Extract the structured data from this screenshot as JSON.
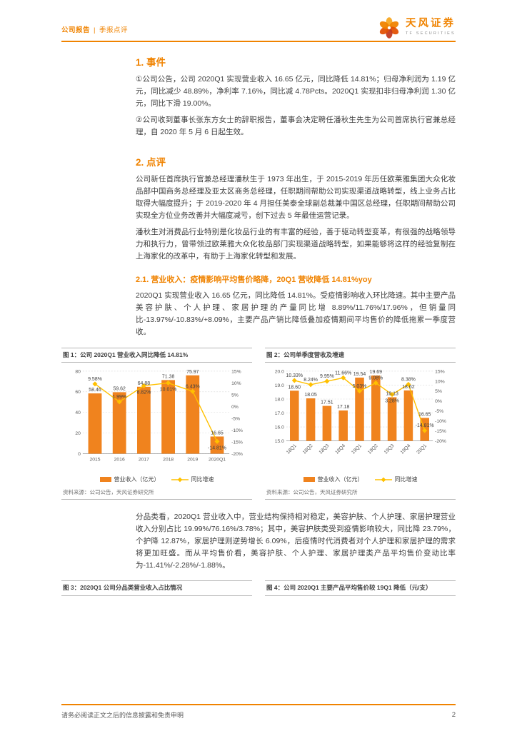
{
  "header": {
    "category": "公司报告",
    "separator": "|",
    "subcategory": "季报点评",
    "brand": "天风证券",
    "brand_sub": "TF SECURITIES"
  },
  "sections": {
    "s1_title": "1. 事件",
    "s1_p1": "①公司公告，公司 2020Q1 实现营业收入 16.65 亿元，同比降低 14.81%；归母净利润为 1.19 亿元，同比减少 48.89%，净利率 7.16%，同比减 4.78Pcts。2020Q1 实现扣非归母净利润 1.30 亿元，同比下滑 19.00%。",
    "s1_p2": "②公司收到董事长张东方女士的辞职报告，董事会决定聘任潘秋生先生为公司首席执行官兼总经理，自 2020 年 5 月 6 日起生效。",
    "s2_title": "2. 点评",
    "s2_p1": "公司新任首席执行官兼总经理潘秋生于 1973 年出生，于 2015-2019 年历任欧莱雅集团大众化妆品部中国商务总经理及亚太区商务总经理，任职期间帮助公司实现渠道战略转型，线上业务占比取得大幅度提升；于 2019-2020 年 4 月担任美泰全球副总裁兼中国区总经理，任职期间帮助公司实现全方位业务改善并大幅度减亏，创下过去 5 年最佳运营记录。",
    "s2_p2": "潘秋生对消费品行业特别是化妆品行业的有丰富的经验，善于驱动转型变革，有很强的战略领导力和执行力，曾带领过欧莱雅大众化妆品部门实现渠道战略转型，如果能够将这样的经验复制在上海家化的改革中，有助于上海家化转型和发展。",
    "s21_title": "2.1. 营业收入：疫情影响平均售价略降，20Q1 营收降低 14.81%yoy",
    "s21_p1": "2020Q1 实现营业收入 16.65 亿元，同比降低 14.81%。受疫情影响收入环比降速。其中主要产品美容护肤、个人护理、家居护理的产量同比增 8.89%/11.76%/17.96%，但销量同比-13.97%/-10.83%/+8.09%，主要产品产销比降低叠加疫情期间平均售价的降低拖累一季度营收。",
    "s21_p2": "分品类看，2020Q1 营业收入中，营业结构保持相对稳定，美容护肤、个人护理、家居护理营业收入分别占比 19.99%/76.16%/3.78%；其中，美容护肤类受到疫情影响较大，同比降 23.79%，个护降 12.87%，家居护理则逆势增长 6.09%，后疫情时代消费者对个人护理和家居护理的需求将更加旺盛。而从平均售价看，美容护肤、个人护理、家居护理类产品平均售价变动比率为-11.41%/-2.28%/-1.88%。"
  },
  "figures": {
    "fig1_title": "图 1：公司 2020Q1 营业收入同比降低 14.81%",
    "fig2_title": "图 2：公司单季度营收及增速",
    "fig3_title": "图 3：2020Q1 公司分品类营业收入占比情况",
    "fig4_title": "图 4：公司 2020Q1 主要产品平均售价较 19Q1 降低（元/支）",
    "source": "资料来源：公司公告，天风证券研究所",
    "legend_bar": "营业收入（亿元）",
    "legend_line": "同比增速"
  },
  "footer": {
    "disclaimer": "请务必阅读正文之后的信息披露和免责申明",
    "page": "2"
  },
  "colors": {
    "accent": "#f08300",
    "bar": "#f0831e",
    "line": "#ffc000",
    "grid": "#d9d9d9",
    "axis_text": "#595959",
    "label": "#404040"
  },
  "chart_data": [
    {
      "type": "bar",
      "subtype": "bar+line-combo",
      "title": "图 1：公司 2020Q1 营业收入同比降低 14.81%",
      "categories": [
        "2015",
        "2016",
        "2017",
        "2018",
        "2019",
        "2020Q1"
      ],
      "bar_series": {
        "name": "营业收入（亿元）",
        "values": [
          58.46,
          59.62,
          64.88,
          71.38,
          75.97,
          16.65
        ]
      },
      "line_series": {
        "name": "同比增速",
        "unit": "%",
        "values": [
          9.58,
          1.99,
          8.82,
          10.01,
          6.43,
          -14.81
        ]
      },
      "y_left": {
        "min": 0,
        "max": 80,
        "step": 20,
        "decimals": 0
      },
      "y_right": {
        "min": -20,
        "max": 15,
        "step": 5,
        "unit": "%"
      },
      "x_label_rotate": 0,
      "grid": true,
      "legend_position": "bottom"
    },
    {
      "type": "bar",
      "subtype": "bar+line-combo",
      "title": "图 2：公司单季度营收及增速",
      "categories": [
        "18Q1",
        "18Q2",
        "18Q3",
        "18Q4",
        "19Q1",
        "19Q2",
        "19Q3",
        "19Q4",
        "20Q1"
      ],
      "bar_series": {
        "name": "营业收入（亿元）",
        "values": [
          18.6,
          18.05,
          17.51,
          17.18,
          19.54,
          19.69,
          18.13,
          18.62,
          16.65
        ]
      },
      "line_series": {
        "name": "同比增速",
        "unit": "%",
        "values": [
          10.33,
          8.24,
          9.95,
          11.66,
          5.03,
          9.08,
          3.28,
          8.38,
          -14.81
        ]
      },
      "y_left": {
        "min": 15,
        "max": 20,
        "step": 1,
        "decimals": 1
      },
      "y_right": {
        "min": -20,
        "max": 15,
        "step": 5,
        "unit": "%"
      },
      "x_label_rotate": -45,
      "grid": true,
      "legend_position": "bottom"
    }
  ]
}
